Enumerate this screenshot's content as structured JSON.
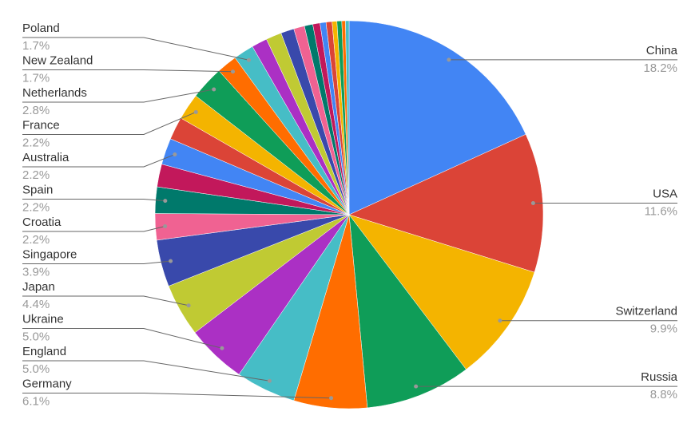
{
  "chart_data": {
    "type": "pie",
    "categories": [
      "China",
      "USA",
      "Switzerland",
      "Russia",
      "Germany",
      "England",
      "Ukraine",
      "Japan",
      "Singapore",
      "Croatia",
      "Spain",
      null,
      "Australia",
      null,
      "France",
      "Netherlands",
      "New Zealand",
      "Poland",
      null,
      null,
      null,
      null,
      null,
      null,
      null,
      null,
      null,
      null,
      null,
      null
    ],
    "values": [
      18.2,
      11.6,
      9.9,
      8.8,
      6.1,
      5.0,
      5.0,
      4.4,
      3.9,
      2.2,
      2.2,
      1.9,
      2.2,
      1.9,
      2.2,
      2.8,
      1.7,
      1.7,
      1.3,
      1.3,
      1.1,
      0.9,
      0.7,
      0.6,
      0.5,
      0.5,
      0.4,
      0.4,
      0.3,
      0.3
    ],
    "value_labels": [
      "18.2%",
      "11.6%",
      "9.9%",
      "8.8%",
      "6.1%",
      "5.0%",
      "5.0%",
      "4.4%",
      "3.9%",
      "2.2%",
      "2.2%",
      null,
      "2.2%",
      null,
      "2.2%",
      "2.8%",
      "1.7%",
      "1.7%",
      null,
      null,
      null,
      null,
      null,
      null,
      null,
      null,
      null,
      null,
      null,
      null
    ],
    "colors": [
      "#4285f4",
      "#db4437",
      "#f4b400",
      "#0f9d58",
      "#ff6d00",
      "#46bdc6",
      "#ab30c4",
      "#c0ca33",
      "#3949ab",
      "#f06292",
      "#00796b",
      "#c2185b",
      "#4285f4",
      "#db4437",
      "#f4b400",
      "#0f9d58",
      "#ff6d00",
      "#46bdc6",
      "#ab30c4",
      "#c0ca33",
      "#3949ab",
      "#f06292",
      "#00796b",
      "#c2185b",
      "#4285f4",
      "#db4437",
      "#f4b400",
      "#0f9d58",
      "#ff6d00",
      "#46bdc6"
    ]
  }
}
